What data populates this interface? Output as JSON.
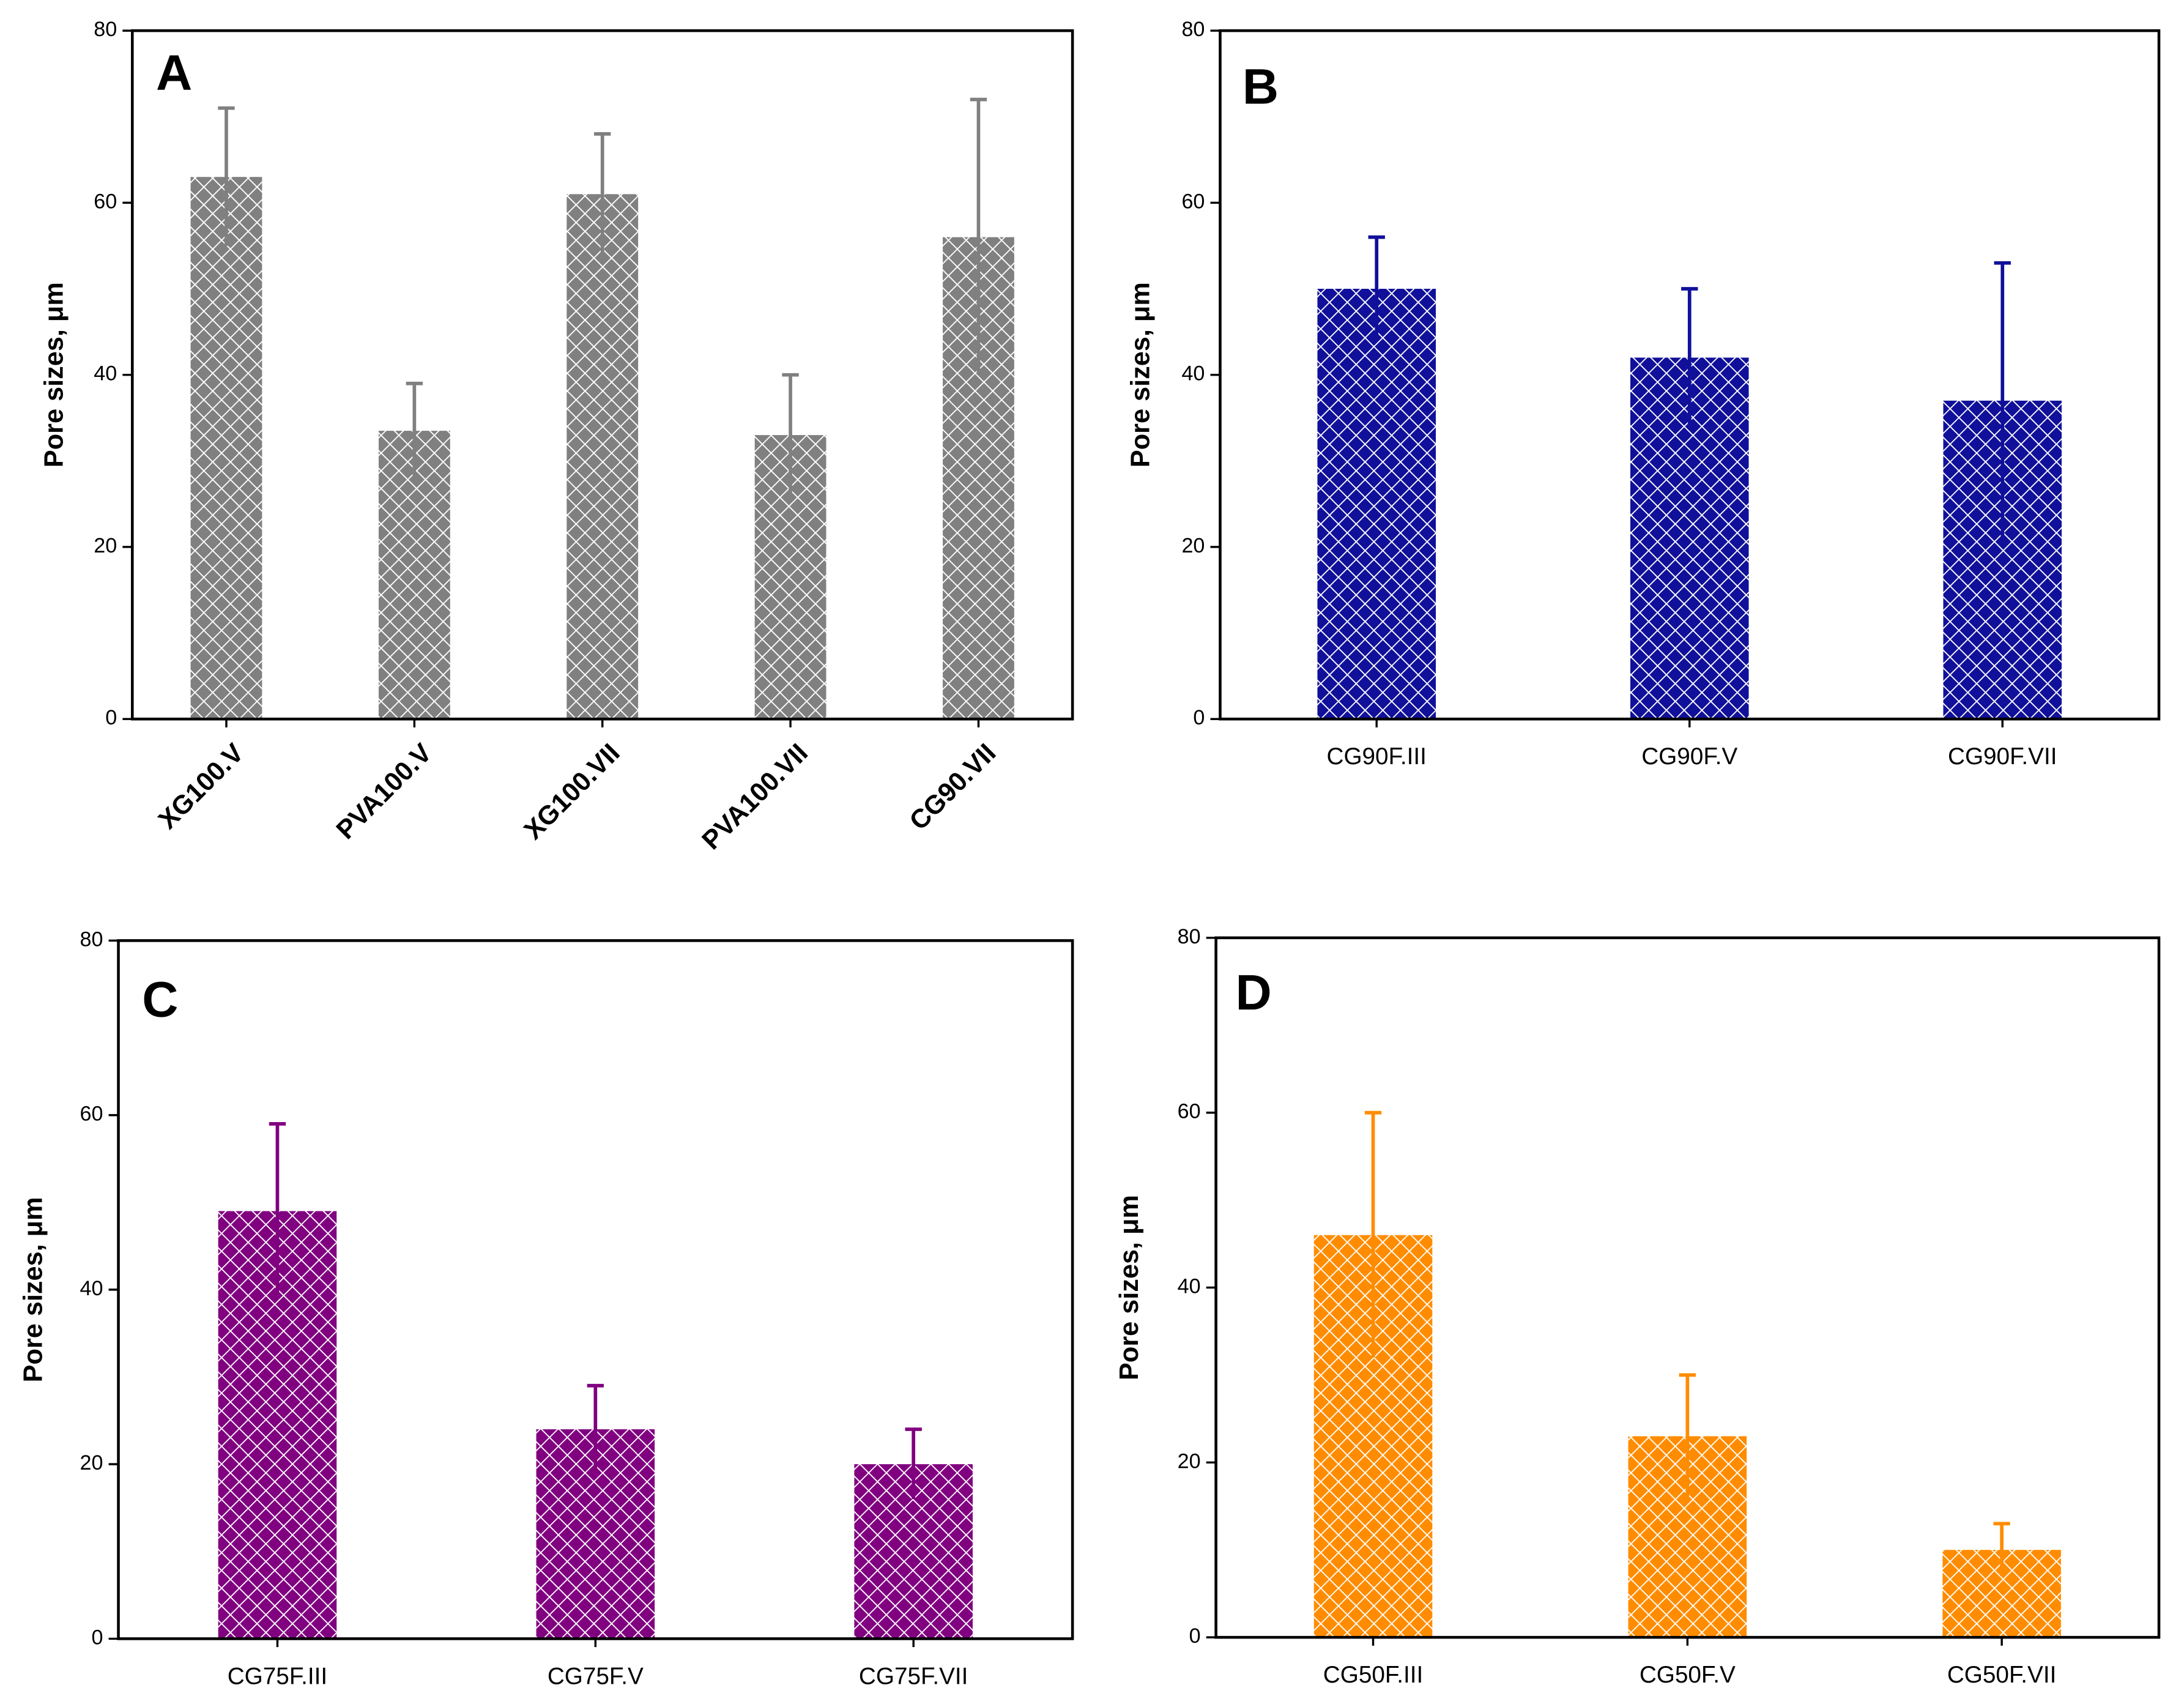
{
  "chart_data": [
    {
      "type": "bar",
      "panel_label": "A",
      "ylabel": "Pore sizes, μm",
      "categories": [
        "XG100.V",
        "PVA100.V",
        "XG100.VII",
        "PVA100.VII",
        "CG90.VII"
      ],
      "values": [
        63,
        33.5,
        61,
        33,
        56
      ],
      "errors": [
        8,
        5.5,
        7,
        7,
        16
      ],
      "color": "#808080",
      "ylim": [
        0,
        80
      ],
      "yticks": [
        0,
        20,
        40,
        60,
        80
      ]
    },
    {
      "type": "bar",
      "panel_label": "B",
      "ylabel": "Pore sizes, μm",
      "categories": [
        "CG90F.III",
        "CG90F.V",
        "CG90F.VII"
      ],
      "values": [
        50,
        42,
        37
      ],
      "errors": [
        6,
        8,
        16
      ],
      "color": "#10109a",
      "ylim": [
        0,
        80
      ],
      "yticks": [
        0,
        20,
        40,
        60,
        80
      ]
    },
    {
      "type": "bar",
      "panel_label": "C",
      "ylabel": "Pore sizes, μm",
      "categories": [
        "CG75F.III",
        "CG75F.V",
        "CG75F.VII"
      ],
      "values": [
        49,
        24,
        20
      ],
      "errors": [
        10,
        5,
        4
      ],
      "color": "#800080",
      "ylim": [
        0,
        80
      ],
      "yticks": [
        0,
        20,
        40,
        60,
        80
      ]
    },
    {
      "type": "bar",
      "panel_label": "D",
      "ylabel": "Pore sizes, μm",
      "categories": [
        "CG50F.III",
        "CG50F.V",
        "CG50F.VII"
      ],
      "values": [
        46,
        23,
        10
      ],
      "errors": [
        14,
        7,
        3
      ],
      "color": "#ff8c00",
      "ylim": [
        0,
        80
      ],
      "yticks": [
        0,
        20,
        40,
        60,
        80
      ]
    }
  ]
}
